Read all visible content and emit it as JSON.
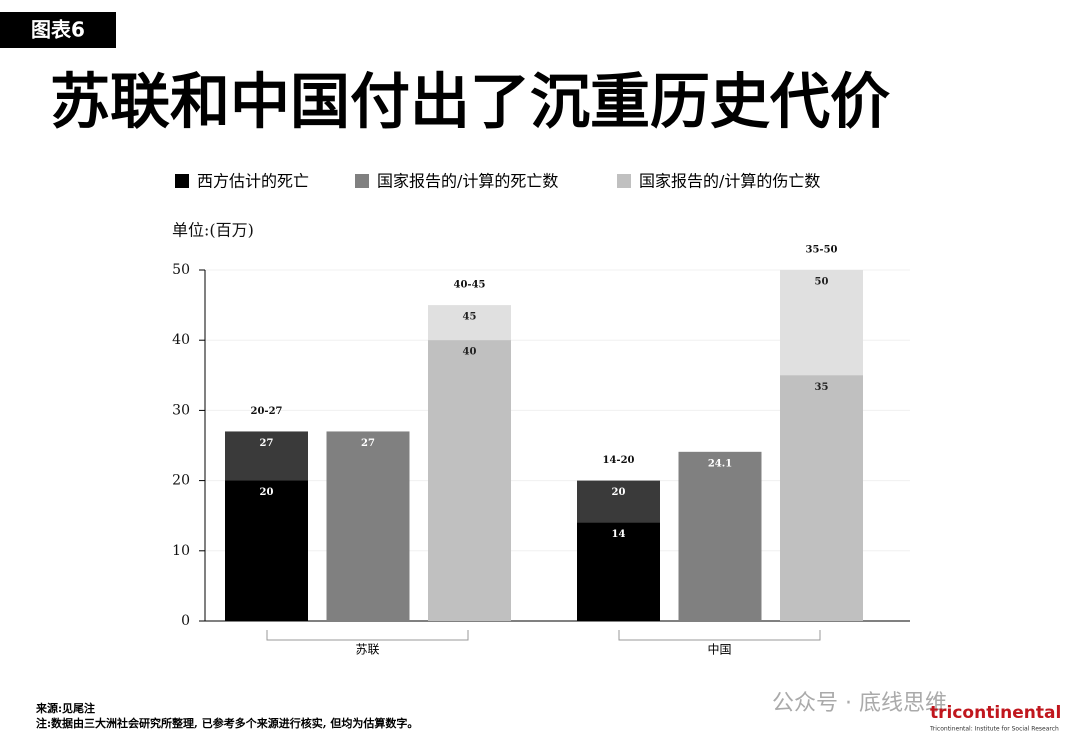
{
  "badge": "图表6",
  "chart_data": {
    "type": "bar",
    "title": "苏联和中国付出了沉重历史代价",
    "unit_label": "单位:(百万)",
    "categories": [
      "苏联",
      "中国"
    ],
    "series": [
      {
        "name": "西方估计的死亡",
        "color": "#000000",
        "values": [
          20,
          14
        ],
        "high_values": [
          27,
          20
        ],
        "high_color": "#3a3a3a",
        "range_labels": [
          "20-27",
          "14-20"
        ]
      },
      {
        "name": "国家报告的/计算的死亡数",
        "color": "#808080",
        "values": [
          27,
          24.1
        ]
      },
      {
        "name": "国家报告的/计算的伤亡数",
        "color": "#c0c0c0",
        "values": [
          40,
          35
        ],
        "high_values": [
          45,
          50
        ],
        "high_color": "#e0e0e0",
        "range_labels": [
          "40-45",
          "35-50"
        ]
      }
    ],
    "ylim": [
      0,
      50
    ],
    "yticks": [
      0,
      10,
      20,
      30,
      40,
      50
    ],
    "grid": true
  },
  "footer": {
    "source": "来源:见尾注",
    "note": "注:数据由三大洲社会研究所整理, 已参考多个来源进行核实, 但均为估算数字。",
    "watermark": "公众号 · 底线思维",
    "logo": "tricontinental",
    "logo_sub": "Tricontinental: Institute for Social Research"
  }
}
